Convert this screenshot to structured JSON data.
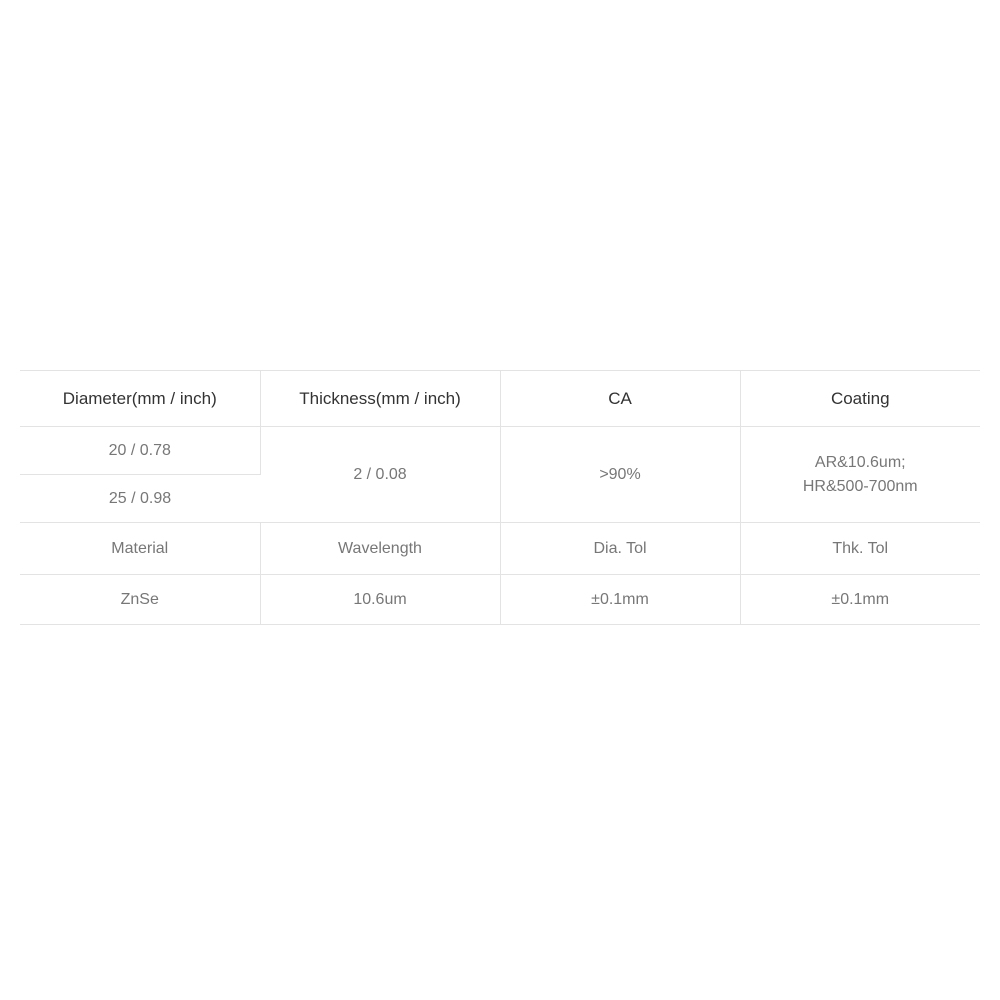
{
  "table": {
    "type": "table",
    "border_color": "#e3e3e3",
    "background_color": "#ffffff",
    "header_text_color": "#333333",
    "body_text_color": "#777777",
    "header_fontsize": 17,
    "body_fontsize": 16,
    "section1": {
      "headers": [
        "Diameter(mm / inch)",
        "Thickness(mm / inch)",
        "CA",
        "Coating"
      ],
      "diameter_values": [
        "20 / 0.78",
        "25 / 0.98"
      ],
      "thickness": "2 / 0.08",
      "ca": ">90%",
      "coating_line1": "AR&10.6um;",
      "coating_line2": "HR&500-700nm"
    },
    "section2": {
      "headers": [
        "Material",
        "Wavelength",
        "Dia. Tol",
        "Thk. Tol"
      ],
      "values": [
        "ZnSe",
        "10.6um",
        "±0.1mm",
        "±0.1mm"
      ]
    }
  }
}
